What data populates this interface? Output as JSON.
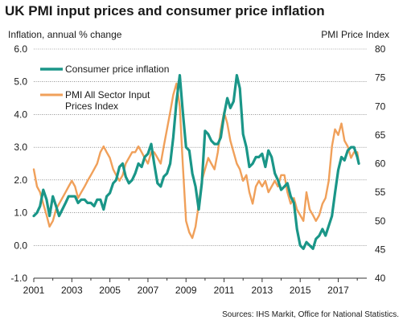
{
  "chart_data": {
    "type": "line",
    "title": "UK PMI input prices and consumer price inflation",
    "left_axis": {
      "label": "Inflation, annual % change",
      "min": -1.0,
      "max": 6.0,
      "ticks": [
        "-1.0",
        "0.0",
        "1.0",
        "2.0",
        "3.0",
        "4.0",
        "5.0",
        "6.0"
      ]
    },
    "right_axis": {
      "label": "PMI Price Index",
      "min": 40,
      "max": 80,
      "ticks": [
        "40",
        "45",
        "50",
        "55",
        "60",
        "65",
        "70",
        "75",
        "80"
      ]
    },
    "x_axis": {
      "min": 2001.0,
      "max": 2018.5,
      "ticks": [
        "2001",
        "2003",
        "2005",
        "2007",
        "2009",
        "2011",
        "2013",
        "2015",
        "2017"
      ]
    },
    "grid": "horizontal",
    "legend_position": "top-left",
    "series": [
      {
        "name": "Consumer price inflation",
        "axis": "left",
        "color": "#1a9688",
        "points": [
          [
            2001.0,
            0.9
          ],
          [
            2001.17,
            1.0
          ],
          [
            2001.33,
            1.2
          ],
          [
            2001.5,
            1.7
          ],
          [
            2001.67,
            1.4
          ],
          [
            2001.83,
            0.9
          ],
          [
            2002.0,
            1.5
          ],
          [
            2002.17,
            1.2
          ],
          [
            2002.33,
            0.9
          ],
          [
            2002.5,
            1.1
          ],
          [
            2002.67,
            1.3
          ],
          [
            2002.83,
            1.5
          ],
          [
            2003.0,
            1.5
          ],
          [
            2003.17,
            1.5
          ],
          [
            2003.33,
            1.3
          ],
          [
            2003.5,
            1.4
          ],
          [
            2003.67,
            1.4
          ],
          [
            2003.83,
            1.3
          ],
          [
            2004.0,
            1.3
          ],
          [
            2004.17,
            1.2
          ],
          [
            2004.33,
            1.4
          ],
          [
            2004.5,
            1.4
          ],
          [
            2004.67,
            1.1
          ],
          [
            2004.83,
            1.5
          ],
          [
            2005.0,
            1.6
          ],
          [
            2005.17,
            1.9
          ],
          [
            2005.33,
            2.0
          ],
          [
            2005.5,
            2.4
          ],
          [
            2005.67,
            2.5
          ],
          [
            2005.83,
            2.1
          ],
          [
            2006.0,
            1.9
          ],
          [
            2006.17,
            2.0
          ],
          [
            2006.33,
            2.2
          ],
          [
            2006.5,
            2.5
          ],
          [
            2006.67,
            2.4
          ],
          [
            2006.83,
            2.7
          ],
          [
            2007.0,
            2.8
          ],
          [
            2007.17,
            3.1
          ],
          [
            2007.33,
            2.5
          ],
          [
            2007.5,
            1.9
          ],
          [
            2007.67,
            1.8
          ],
          [
            2007.83,
            2.1
          ],
          [
            2008.0,
            2.2
          ],
          [
            2008.17,
            2.5
          ],
          [
            2008.33,
            3.3
          ],
          [
            2008.5,
            4.4
          ],
          [
            2008.67,
            5.2
          ],
          [
            2008.83,
            4.1
          ],
          [
            2009.0,
            3.0
          ],
          [
            2009.17,
            2.9
          ],
          [
            2009.33,
            2.2
          ],
          [
            2009.5,
            1.8
          ],
          [
            2009.67,
            1.1
          ],
          [
            2009.83,
            1.9
          ],
          [
            2010.0,
            3.5
          ],
          [
            2010.17,
            3.4
          ],
          [
            2010.33,
            3.2
          ],
          [
            2010.5,
            3.1
          ],
          [
            2010.67,
            3.1
          ],
          [
            2010.83,
            3.3
          ],
          [
            2011.0,
            4.0
          ],
          [
            2011.17,
            4.5
          ],
          [
            2011.33,
            4.2
          ],
          [
            2011.5,
            4.4
          ],
          [
            2011.67,
            5.2
          ],
          [
            2011.83,
            4.8
          ],
          [
            2012.0,
            3.4
          ],
          [
            2012.17,
            3.0
          ],
          [
            2012.33,
            2.4
          ],
          [
            2012.5,
            2.5
          ],
          [
            2012.67,
            2.7
          ],
          [
            2012.83,
            2.7
          ],
          [
            2013.0,
            2.8
          ],
          [
            2013.17,
            2.4
          ],
          [
            2013.33,
            2.9
          ],
          [
            2013.5,
            2.7
          ],
          [
            2013.67,
            2.2
          ],
          [
            2013.83,
            2.0
          ],
          [
            2014.0,
            1.7
          ],
          [
            2014.17,
            1.8
          ],
          [
            2014.33,
            1.9
          ],
          [
            2014.5,
            1.5
          ],
          [
            2014.67,
            1.3
          ],
          [
            2014.83,
            0.5
          ],
          [
            2015.0,
            0.0
          ],
          [
            2015.17,
            -0.1
          ],
          [
            2015.33,
            0.1
          ],
          [
            2015.5,
            0.0
          ],
          [
            2015.67,
            -0.1
          ],
          [
            2015.83,
            0.2
          ],
          [
            2016.0,
            0.3
          ],
          [
            2016.17,
            0.5
          ],
          [
            2016.33,
            0.3
          ],
          [
            2016.5,
            0.6
          ],
          [
            2016.67,
            0.9
          ],
          [
            2016.83,
            1.6
          ],
          [
            2017.0,
            2.3
          ],
          [
            2017.17,
            2.7
          ],
          [
            2017.33,
            2.6
          ],
          [
            2017.5,
            2.9
          ],
          [
            2017.67,
            3.0
          ],
          [
            2017.83,
            3.0
          ],
          [
            2018.0,
            2.7
          ],
          [
            2018.08,
            2.5
          ]
        ]
      },
      {
        "name": "PMI All Sector Input Prices Index",
        "axis": "right",
        "color": "#f0a05a",
        "points": [
          [
            2001.0,
            59
          ],
          [
            2001.17,
            56
          ],
          [
            2001.33,
            55
          ],
          [
            2001.5,
            53
          ],
          [
            2001.67,
            51
          ],
          [
            2001.83,
            49
          ],
          [
            2002.0,
            50
          ],
          [
            2002.17,
            52
          ],
          [
            2002.33,
            53
          ],
          [
            2002.5,
            54
          ],
          [
            2002.67,
            55
          ],
          [
            2002.83,
            56
          ],
          [
            2003.0,
            57
          ],
          [
            2003.17,
            56
          ],
          [
            2003.33,
            54
          ],
          [
            2003.5,
            55
          ],
          [
            2003.67,
            56
          ],
          [
            2003.83,
            57
          ],
          [
            2004.0,
            58
          ],
          [
            2004.17,
            59
          ],
          [
            2004.33,
            60
          ],
          [
            2004.5,
            62
          ],
          [
            2004.67,
            63
          ],
          [
            2004.83,
            62
          ],
          [
            2005.0,
            61
          ],
          [
            2005.17,
            59
          ],
          [
            2005.33,
            58
          ],
          [
            2005.5,
            57
          ],
          [
            2005.67,
            58
          ],
          [
            2005.83,
            60
          ],
          [
            2006.0,
            61
          ],
          [
            2006.17,
            62
          ],
          [
            2006.33,
            62
          ],
          [
            2006.5,
            63
          ],
          [
            2006.67,
            62
          ],
          [
            2006.83,
            61
          ],
          [
            2007.0,
            60
          ],
          [
            2007.17,
            62
          ],
          [
            2007.33,
            62
          ],
          [
            2007.5,
            61
          ],
          [
            2007.67,
            60
          ],
          [
            2007.83,
            63
          ],
          [
            2008.0,
            66
          ],
          [
            2008.17,
            69
          ],
          [
            2008.33,
            72
          ],
          [
            2008.5,
            74
          ],
          [
            2008.67,
            70
          ],
          [
            2008.83,
            60
          ],
          [
            2009.0,
            50
          ],
          [
            2009.17,
            48
          ],
          [
            2009.33,
            47
          ],
          [
            2009.5,
            49
          ],
          [
            2009.67,
            53
          ],
          [
            2009.83,
            57
          ],
          [
            2010.0,
            59
          ],
          [
            2010.17,
            61
          ],
          [
            2010.33,
            60
          ],
          [
            2010.5,
            59
          ],
          [
            2010.67,
            62
          ],
          [
            2010.83,
            66
          ],
          [
            2011.0,
            69
          ],
          [
            2011.17,
            67
          ],
          [
            2011.33,
            64
          ],
          [
            2011.5,
            62
          ],
          [
            2011.67,
            60
          ],
          [
            2011.83,
            59
          ],
          [
            2012.0,
            57
          ],
          [
            2012.17,
            58
          ],
          [
            2012.33,
            55
          ],
          [
            2012.5,
            53
          ],
          [
            2012.67,
            56
          ],
          [
            2012.83,
            57
          ],
          [
            2013.0,
            56
          ],
          [
            2013.17,
            57
          ],
          [
            2013.33,
            55
          ],
          [
            2013.5,
            56
          ],
          [
            2013.67,
            57
          ],
          [
            2013.83,
            56
          ],
          [
            2014.0,
            58
          ],
          [
            2014.17,
            58
          ],
          [
            2014.33,
            55
          ],
          [
            2014.5,
            53
          ],
          [
            2014.67,
            54
          ],
          [
            2014.83,
            52
          ],
          [
            2015.0,
            51
          ],
          [
            2015.17,
            50
          ],
          [
            2015.33,
            55
          ],
          [
            2015.5,
            52
          ],
          [
            2015.67,
            51
          ],
          [
            2015.83,
            50
          ],
          [
            2016.0,
            51
          ],
          [
            2016.17,
            53
          ],
          [
            2016.33,
            54
          ],
          [
            2016.5,
            57
          ],
          [
            2016.67,
            63
          ],
          [
            2016.83,
            66
          ],
          [
            2017.0,
            65
          ],
          [
            2017.17,
            67
          ],
          [
            2017.33,
            64
          ],
          [
            2017.5,
            63
          ],
          [
            2017.67,
            61
          ],
          [
            2017.83,
            62
          ],
          [
            2018.0,
            62
          ],
          [
            2018.08,
            60
          ]
        ]
      }
    ],
    "source": "Sources: IHS Markit, Office for National Statistics."
  }
}
